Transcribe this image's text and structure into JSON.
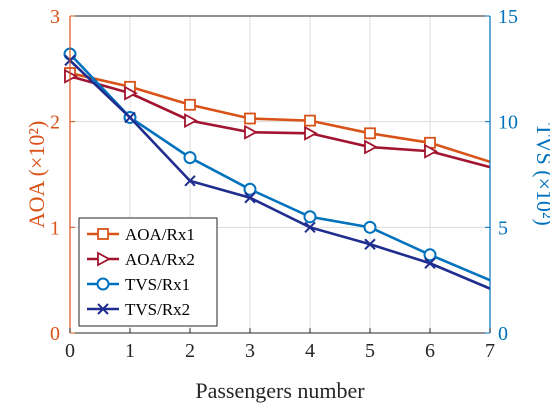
{
  "chart_data": {
    "type": "line",
    "xlabel": "Passengers number",
    "x": [
      0,
      1,
      2,
      3,
      4,
      5,
      6,
      7
    ],
    "xlim": [
      0,
      7
    ],
    "xticks": [
      "0",
      "1",
      "2",
      "3",
      "4",
      "5",
      "6",
      "7"
    ],
    "left_axis": {
      "label": "AOA (×10²)",
      "ylim": [
        0,
        3
      ],
      "ticks": [
        "0",
        "1",
        "2",
        "3"
      ],
      "color": "#D95319"
    },
    "right_axis": {
      "label": "TVS (×10²)",
      "ylim": [
        0,
        15
      ],
      "ticks": [
        "0",
        "5",
        "10",
        "15"
      ],
      "color": "#0072BD"
    },
    "series": [
      {
        "name": "AOA/Rx1",
        "axis": "left",
        "color": "#D95319",
        "marker": "square",
        "values": [
          2.46,
          2.33,
          2.16,
          2.03,
          2.01,
          1.89,
          1.8,
          1.62
        ]
      },
      {
        "name": "AOA/Rx2",
        "axis": "left",
        "color": "#A2142F",
        "marker": "triangle-right",
        "values": [
          2.43,
          2.27,
          2.01,
          1.9,
          1.89,
          1.76,
          1.72,
          1.57
        ]
      },
      {
        "name": "TVS/Rx1",
        "axis": "right",
        "color": "#0072BD",
        "marker": "circle",
        "values": [
          13.2,
          10.2,
          8.3,
          6.8,
          5.5,
          5.0,
          3.7,
          2.5
        ]
      },
      {
        "name": "TVS/Rx2",
        "axis": "right",
        "color": "#1F2D8F",
        "marker": "x",
        "values": [
          12.9,
          10.2,
          7.2,
          6.4,
          5.0,
          4.2,
          3.3,
          2.1
        ]
      }
    ],
    "grid": true,
    "legend_position": "bottom-left"
  }
}
